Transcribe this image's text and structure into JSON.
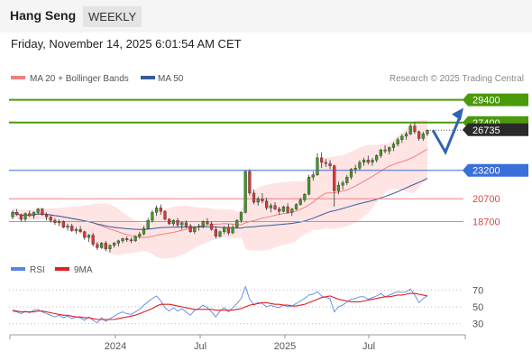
{
  "header": {
    "title": "Hang Seng",
    "period": "WEEKLY"
  },
  "datetime": "Friday, November 14, 2025 6:01:54 AM CET",
  "legend": {
    "items": [
      {
        "label": "MA 20 + Bollinger Bands",
        "color": "#f08080"
      },
      {
        "label": "MA 50",
        "color": "#3a5a9a"
      }
    ],
    "credit": "Research © 2025 Trading Central"
  },
  "chart_data": [
    {
      "type": "candlestick",
      "y_range": [
        15800,
        30400
      ],
      "x_ticks": [
        "2024",
        "Jul",
        "2025",
        "Jul"
      ],
      "levels": [
        {
          "value": 29400,
          "label": "29400",
          "kind": "resistance",
          "color": "#4a9a0a"
        },
        {
          "value": 27400,
          "label": "27400",
          "kind": "resistance",
          "color": "#4a9a0a"
        },
        {
          "value": 26735,
          "label": "26735",
          "kind": "last-price",
          "color": "#2a2a2a"
        },
        {
          "value": 23200,
          "label": "23200",
          "kind": "pivot",
          "color": "#3a6ed8"
        },
        {
          "value": 20700,
          "label": "20700",
          "kind": "support",
          "color": "#f08080"
        },
        {
          "value": 18700,
          "label": "18700",
          "kind": "support",
          "color": "#f08080"
        }
      ],
      "scenario_path": [
        26735,
        24800,
        27900
      ],
      "series": [
        {
          "name": "Hang Seng",
          "ohlc": [
            [
              19100,
              19700,
              18900,
              19500
            ],
            [
              19500,
              19800,
              19200,
              19300
            ],
            [
              19300,
              19400,
              18700,
              18900
            ],
            [
              18900,
              19500,
              18700,
              19400
            ],
            [
              19400,
              19700,
              19100,
              19200
            ],
            [
              19200,
              19600,
              18900,
              19500
            ],
            [
              19500,
              19900,
              19300,
              19800
            ],
            [
              19800,
              19900,
              19200,
              19300
            ],
            [
              19300,
              19500,
              18800,
              19100
            ],
            [
              19100,
              19300,
              18600,
              18800
            ],
            [
              18800,
              19000,
              18400,
              18600
            ],
            [
              18600,
              18900,
              18300,
              18700
            ],
            [
              18700,
              18800,
              18100,
              18200
            ],
            [
              18200,
              18500,
              17900,
              18300
            ],
            [
              18300,
              18500,
              17800,
              17900
            ],
            [
              17900,
              18200,
              17600,
              18000
            ],
            [
              18000,
              18300,
              17700,
              17800
            ],
            [
              17800,
              17900,
              17100,
              17300
            ],
            [
              17300,
              17600,
              16900,
              17500
            ],
            [
              17500,
              17700,
              16500,
              16700
            ],
            [
              16700,
              16900,
              16200,
              16400
            ],
            [
              16400,
              16900,
              16300,
              16800
            ],
            [
              16800,
              17000,
              16100,
              16300
            ],
            [
              16300,
              16700,
              16000,
              16600
            ],
            [
              16600,
              16900,
              16400,
              16800
            ],
            [
              16800,
              17100,
              16500,
              17000
            ],
            [
              17000,
              17300,
              16800,
              17200
            ],
            [
              17200,
              17400,
              16900,
              17100
            ],
            [
              17100,
              17300,
              16800,
              17000
            ],
            [
              17000,
              17500,
              16900,
              17400
            ],
            [
              17400,
              17800,
              17200,
              17600
            ],
            [
              17600,
              18300,
              17500,
              18100
            ],
            [
              18100,
              19000,
              18000,
              18800
            ],
            [
              18800,
              19700,
              18600,
              19500
            ],
            [
              19500,
              20100,
              19200,
              19900
            ],
            [
              19900,
              20200,
              19300,
              19600
            ],
            [
              19600,
              19700,
              18800,
              18900
            ],
            [
              18900,
              19000,
              18400,
              18500
            ],
            [
              18500,
              18900,
              18300,
              18800
            ],
            [
              18800,
              19000,
              18200,
              18400
            ],
            [
              18400,
              18700,
              18000,
              18600
            ],
            [
              18600,
              18800,
              18100,
              18300
            ],
            [
              18300,
              18500,
              17700,
              17800
            ],
            [
              17800,
              18300,
              17600,
              18200
            ],
            [
              18200,
              18500,
              17900,
              18300
            ],
            [
              18300,
              18800,
              18100,
              18700
            ],
            [
              18700,
              19000,
              18400,
              18500
            ],
            [
              18500,
              18700,
              17900,
              18000
            ],
            [
              18000,
              18300,
              17200,
              17400
            ],
            [
              17400,
              17900,
              17300,
              17800
            ],
            [
              17800,
              18300,
              17600,
              18200
            ],
            [
              18200,
              18500,
              17500,
              17700
            ],
            [
              17700,
              18400,
              17600,
              18200
            ],
            [
              18200,
              18900,
              18100,
              18800
            ],
            [
              18800,
              19600,
              18600,
              19500
            ],
            [
              19500,
              23200,
              19400,
              23100
            ],
            [
              23100,
              23300,
              21000,
              21200
            ],
            [
              21200,
              21500,
              20200,
              20400
            ],
            [
              20400,
              20900,
              20100,
              20700
            ],
            [
              20700,
              21200,
              20300,
              20500
            ],
            [
              20500,
              20800,
              19700,
              19900
            ],
            [
              19900,
              20300,
              19500,
              20100
            ],
            [
              20100,
              20400,
              19700,
              19800
            ],
            [
              19800,
              20000,
              19300,
              19600
            ],
            [
              19600,
              20100,
              19500,
              20000
            ],
            [
              20000,
              20300,
              19400,
              19500
            ],
            [
              19500,
              19900,
              19200,
              19800
            ],
            [
              19800,
              20300,
              19700,
              20200
            ],
            [
              20200,
              20800,
              20100,
              20600
            ],
            [
              20600,
              21200,
              20400,
              21100
            ],
            [
              21100,
              22800,
              21000,
              22600
            ],
            [
              22600,
              23100,
              22300,
              22800
            ],
            [
              22800,
              24700,
              22700,
              24300
            ],
            [
              24300,
              24800,
              23400,
              23900
            ],
            [
              23900,
              24200,
              23500,
              23800
            ],
            [
              23800,
              24100,
              23300,
              23600
            ],
            [
              23600,
              23700,
              20000,
              21400
            ],
            [
              21400,
              22200,
              21100,
              21900
            ],
            [
              21900,
              22300,
              21500,
              22100
            ],
            [
              22100,
              22800,
              21900,
              22600
            ],
            [
              22600,
              23400,
              22400,
              23300
            ],
            [
              23300,
              23700,
              22900,
              23400
            ],
            [
              23400,
              24100,
              23200,
              23900
            ],
            [
              23900,
              24300,
              23600,
              24100
            ],
            [
              24100,
              24500,
              23700,
              23900
            ],
            [
              23900,
              24300,
              23600,
              24100
            ],
            [
              24100,
              24600,
              23900,
              24500
            ],
            [
              24500,
              25100,
              24300,
              25000
            ],
            [
              25000,
              25400,
              24700,
              24900
            ],
            [
              24900,
              25300,
              24600,
              25200
            ],
            [
              25200,
              25700,
              24900,
              25500
            ],
            [
              25500,
              26100,
              25300,
              25900
            ],
            [
              25900,
              26400,
              25600,
              26200
            ],
            [
              26200,
              26600,
              25900,
              26400
            ],
            [
              26400,
              27300,
              26300,
              27100
            ],
            [
              27100,
              27400,
              26400,
              26600
            ],
            [
              26600,
              26700,
              25800,
              26000
            ],
            [
              26000,
              26600,
              25800,
              26400
            ],
            [
              26400,
              26800,
              26200,
              26735
            ]
          ]
        }
      ]
    },
    {
      "type": "line",
      "y_ticks": [
        30,
        50,
        70
      ],
      "y_range": [
        20,
        80
      ],
      "series": [
        {
          "name": "RSI",
          "values": [
            45,
            44,
            42,
            45,
            43,
            46,
            47,
            44,
            42,
            40,
            38,
            40,
            37,
            39,
            36,
            38,
            37,
            34,
            38,
            34,
            31,
            37,
            33,
            36,
            39,
            42,
            44,
            42,
            41,
            44,
            47,
            52,
            56,
            60,
            63,
            57,
            49,
            45,
            49,
            45,
            48,
            44,
            40,
            46,
            48,
            52,
            49,
            44,
            38,
            45,
            49,
            44,
            49,
            54,
            60,
            74,
            59,
            52,
            55,
            54,
            50,
            52,
            50,
            49,
            52,
            50,
            51,
            54,
            57,
            60,
            64,
            65,
            68,
            63,
            61,
            60,
            44,
            50,
            52,
            56,
            59,
            60,
            62,
            62,
            59,
            61,
            63,
            66,
            62,
            64,
            66,
            68,
            67,
            68,
            71,
            64,
            55,
            60,
            63
          ]
        },
        {
          "name": "9MA",
          "values": [
            46,
            45,
            44,
            44,
            44,
            44,
            45,
            45,
            44,
            43,
            42,
            41,
            40,
            40,
            39,
            38,
            38,
            37,
            37,
            36,
            35,
            35,
            35,
            35,
            35,
            36,
            37,
            38,
            39,
            40,
            42,
            44,
            46,
            48,
            51,
            53,
            53,
            53,
            52,
            51,
            50,
            49,
            48,
            47,
            47,
            47,
            47,
            47,
            46,
            46,
            46,
            46,
            46,
            47,
            48,
            50,
            52,
            53,
            54,
            55,
            55,
            54,
            53,
            53,
            52,
            52,
            51,
            51,
            52,
            53,
            55,
            57,
            59,
            61,
            62,
            63,
            61,
            59,
            58,
            57,
            56,
            56,
            56,
            57,
            58,
            59,
            60,
            61,
            62,
            62,
            63,
            64,
            64,
            65,
            66,
            66,
            65,
            64,
            63
          ]
        }
      ]
    }
  ]
}
